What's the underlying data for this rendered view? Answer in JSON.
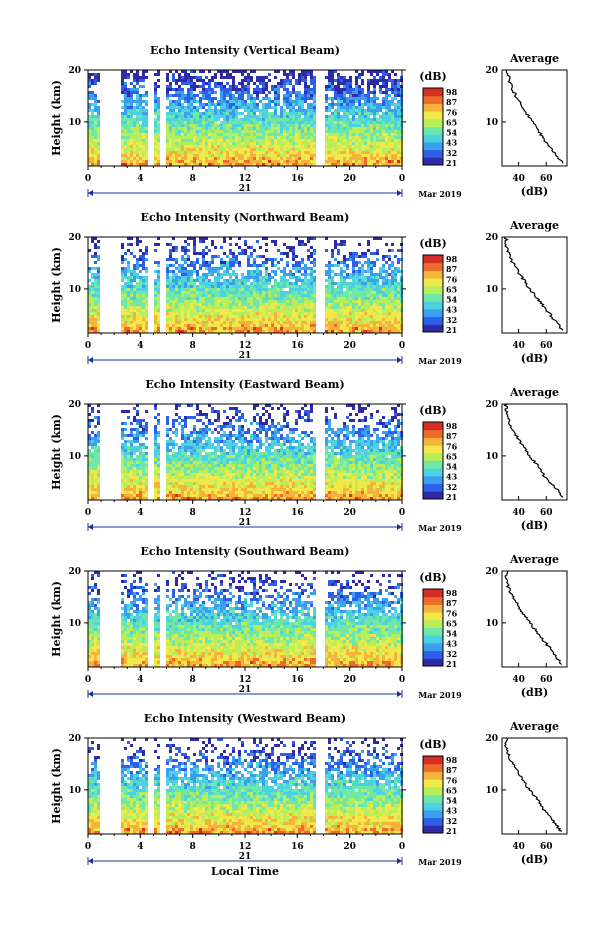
{
  "chart_data": [
    {
      "type": "heatmap",
      "title": "Echo Intensity (Vertical Beam)",
      "ylabel": "Height (km)",
      "xlabel": "",
      "x_ticks": [
        "0",
        "4",
        "8",
        "12",
        "16",
        "20",
        "0"
      ],
      "xlim": [
        0,
        24
      ],
      "y_ticks": [
        "10",
        "20"
      ],
      "ylim": [
        1.5,
        20
      ],
      "day_label": "21",
      "month_label": "Mar 2019",
      "colorbar_title": "(dB)",
      "colorbar_ticks": [
        "98",
        "87",
        "76",
        "65",
        "54",
        "43",
        "32",
        "21"
      ],
      "profile": {
        "title": "Average",
        "xlabel": "(dB)",
        "x_ticks": [
          "40",
          "60"
        ],
        "xlim": [
          28,
          75
        ],
        "y_ticks": [
          "10",
          "20"
        ],
        "heights_km": [
          2,
          4,
          6,
          8,
          10,
          12,
          14,
          16,
          18,
          20
        ],
        "values_db": [
          72,
          66,
          60,
          55,
          50,
          45,
          40,
          36,
          33,
          32
        ]
      }
    },
    {
      "type": "heatmap",
      "title": "Echo Intensity (Northward Beam)",
      "ylabel": "Height (km)",
      "xlabel": "",
      "x_ticks": [
        "0",
        "4",
        "8",
        "12",
        "16",
        "20",
        "0"
      ],
      "xlim": [
        0,
        24
      ],
      "y_ticks": [
        "10",
        "20"
      ],
      "ylim": [
        1.5,
        20
      ],
      "day_label": "21",
      "month_label": "Mar 2019",
      "colorbar_title": "(dB)",
      "colorbar_ticks": [
        "98",
        "87",
        "76",
        "65",
        "54",
        "43",
        "32",
        "21"
      ],
      "profile": {
        "title": "Average",
        "xlabel": "(dB)",
        "x_ticks": [
          "40",
          "60"
        ],
        "xlim": [
          28,
          75
        ],
        "y_ticks": [
          "10",
          "20"
        ],
        "heights_km": [
          2,
          4,
          6,
          8,
          10,
          12,
          14,
          16,
          18,
          20
        ],
        "values_db": [
          72,
          66,
          60,
          54,
          48,
          43,
          38,
          34,
          31,
          31
        ]
      }
    },
    {
      "type": "heatmap",
      "title": "Echo Intensity (Eastward Beam)",
      "ylabel": "Height (km)",
      "xlabel": "",
      "x_ticks": [
        "0",
        "4",
        "8",
        "12",
        "16",
        "20",
        "0"
      ],
      "xlim": [
        0,
        24
      ],
      "y_ticks": [
        "10",
        "20"
      ],
      "ylim": [
        1.5,
        20
      ],
      "day_label": "21",
      "month_label": "Mar 2019",
      "colorbar_title": "(dB)",
      "colorbar_ticks": [
        "98",
        "87",
        "76",
        "65",
        "54",
        "43",
        "32",
        "21"
      ],
      "profile": {
        "title": "Average",
        "xlabel": "(dB)",
        "x_ticks": [
          "40",
          "60"
        ],
        "xlim": [
          28,
          75
        ],
        "y_ticks": [
          "10",
          "20"
        ],
        "heights_km": [
          2,
          4,
          6,
          8,
          10,
          12,
          14,
          16,
          18,
          20
        ],
        "values_db": [
          72,
          66,
          59,
          54,
          48,
          43,
          38,
          34,
          31,
          31
        ]
      }
    },
    {
      "type": "heatmap",
      "title": "Echo Intensity (Southward Beam)",
      "ylabel": "Height (km)",
      "xlabel": "",
      "x_ticks": [
        "0",
        "4",
        "8",
        "12",
        "16",
        "20",
        "0"
      ],
      "xlim": [
        0,
        24
      ],
      "y_ticks": [
        "10",
        "20"
      ],
      "ylim": [
        1.5,
        20
      ],
      "day_label": "21",
      "month_label": "Mar 2019",
      "colorbar_title": "(dB)",
      "colorbar_ticks": [
        "98",
        "87",
        "76",
        "65",
        "54",
        "43",
        "32",
        "21"
      ],
      "profile": {
        "title": "Average",
        "xlabel": "(dB)",
        "x_ticks": [
          "40",
          "60"
        ],
        "xlim": [
          28,
          75
        ],
        "y_ticks": [
          "10",
          "20"
        ],
        "heights_km": [
          2,
          4,
          6,
          8,
          10,
          12,
          14,
          16,
          18,
          20
        ],
        "values_db": [
          71,
          66,
          60,
          54,
          48,
          43,
          38,
          34,
          31,
          31
        ]
      }
    },
    {
      "type": "heatmap",
      "title": "Echo Intensity (Westward Beam)",
      "ylabel": "Height (km)",
      "xlabel": "Local Time",
      "x_ticks": [
        "0",
        "4",
        "8",
        "12",
        "16",
        "20",
        "0"
      ],
      "xlim": [
        0,
        24
      ],
      "y_ticks": [
        "10",
        "20"
      ],
      "ylim": [
        1.5,
        20
      ],
      "day_label": "21",
      "month_label": "Mar 2019",
      "colorbar_title": "(dB)",
      "colorbar_ticks": [
        "98",
        "87",
        "76",
        "65",
        "54",
        "43",
        "32",
        "21"
      ],
      "profile": {
        "title": "Average",
        "xlabel": "(dB)",
        "x_ticks": [
          "40",
          "60"
        ],
        "xlim": [
          28,
          75
        ],
        "y_ticks": [
          "10",
          "20"
        ],
        "heights_km": [
          2,
          4,
          6,
          8,
          10,
          12,
          14,
          16,
          18,
          20
        ],
        "values_db": [
          71,
          65,
          59,
          54,
          48,
          43,
          38,
          34,
          31,
          31
        ]
      }
    }
  ],
  "colors": {
    "colormap": [
      "#2f2ba8",
      "#2d5fe8",
      "#3aa0ee",
      "#4bd1e0",
      "#6ee7a8",
      "#b8ee5c",
      "#f1e94a",
      "#f5b23c",
      "#ee6b2c",
      "#d52f25"
    ],
    "axis": "#000000",
    "time_axis": "#1f2f9a"
  },
  "data_gaps_hours": [
    [
      1.0,
      2.3
    ],
    [
      4.6,
      4.9
    ],
    [
      5.6,
      5.95
    ],
    [
      17.6,
      17.9
    ]
  ]
}
